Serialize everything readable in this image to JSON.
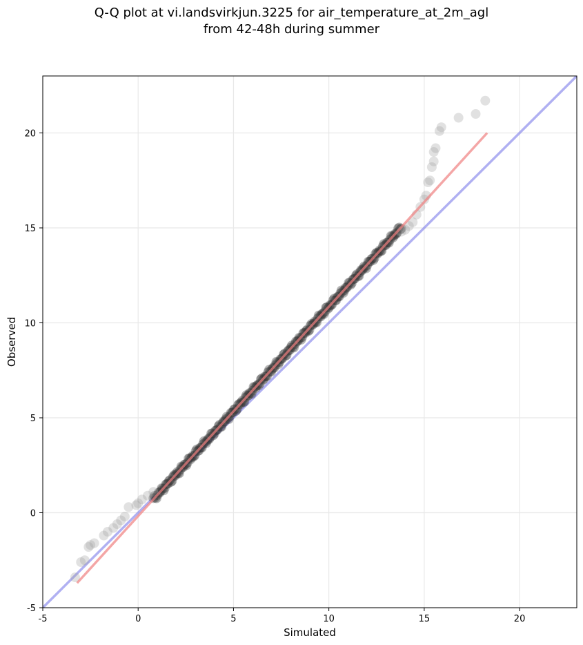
{
  "chart_data": {
    "type": "scatter",
    "title_lines": [
      "Q-Q plot at vi.landsvirkjun.3225 for air_temperature_at_2m_agl",
      "from 42-48h during summer"
    ],
    "xlabel": "Simulated",
    "ylabel": "Observed",
    "xlim": [
      -5,
      23
    ],
    "ylim": [
      -5,
      23
    ],
    "x_ticks": [
      -5,
      0,
      5,
      10,
      15,
      20
    ],
    "y_ticks": [
      -5,
      0,
      5,
      10,
      15,
      20
    ],
    "grid": true,
    "colors": {
      "points": "#333333",
      "reference_line": "#7b7bea",
      "fit_line": "#f08080",
      "grid": "#e8e8e8"
    },
    "reference_line": {
      "x": [
        -5,
        23
      ],
      "y": [
        -5,
        23
      ]
    },
    "fit_line": {
      "x": [
        -3.2,
        18.3
      ],
      "y": [
        -3.7,
        20.0
      ]
    },
    "tail_points": {
      "x": [
        -3.3,
        -3.0,
        -2.8,
        -2.6,
        -2.5,
        -2.3,
        -1.8,
        -1.6,
        -1.3,
        -1.1,
        -0.9,
        -0.7,
        -0.5,
        -0.1,
        0.0,
        0.2,
        0.5,
        0.8,
        13.8,
        14.0,
        14.2,
        14.4,
        14.6,
        14.8,
        15.0,
        15.1,
        15.2,
        15.3,
        15.4,
        15.5,
        15.5,
        15.6,
        15.8,
        15.9,
        16.8,
        17.7,
        18.2
      ],
      "y": [
        -3.4,
        -2.6,
        -2.5,
        -1.8,
        -1.7,
        -1.6,
        -1.2,
        -1.0,
        -0.8,
        -0.6,
        -0.4,
        -0.2,
        0.3,
        0.4,
        0.5,
        0.7,
        0.9,
        1.1,
        14.8,
        14.9,
        15.1,
        15.3,
        15.7,
        16.1,
        16.5,
        16.7,
        17.4,
        17.5,
        18.2,
        18.5,
        19.0,
        19.2,
        20.1,
        20.3,
        20.8,
        21.0,
        21.7
      ]
    },
    "core_points": {
      "x_range": [
        0.8,
        13.8
      ],
      "y_range": [
        1.1,
        14.8
      ]
    }
  }
}
